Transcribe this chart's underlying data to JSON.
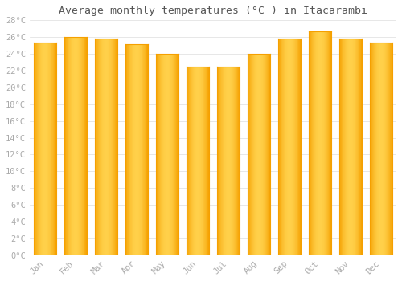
{
  "title": "Average monthly temperatures (°C ) in Itacarambi",
  "months": [
    "Jan",
    "Feb",
    "Mar",
    "Apr",
    "May",
    "Jun",
    "Jul",
    "Aug",
    "Sep",
    "Oct",
    "Nov",
    "Dec"
  ],
  "temperatures": [
    25.3,
    26.0,
    25.8,
    25.2,
    24.0,
    22.5,
    22.5,
    24.0,
    25.8,
    26.7,
    25.8,
    25.3
  ],
  "bar_color_center": "#FFD04A",
  "bar_color_edge": "#F5A000",
  "background_color": "#FFFFFF",
  "grid_color": "#DDDDDD",
  "tick_label_color": "#AAAAAA",
  "title_color": "#555555",
  "ylim": [
    0,
    28
  ],
  "ytick_step": 2,
  "title_fontsize": 9.5,
  "tick_fontsize": 7.5
}
